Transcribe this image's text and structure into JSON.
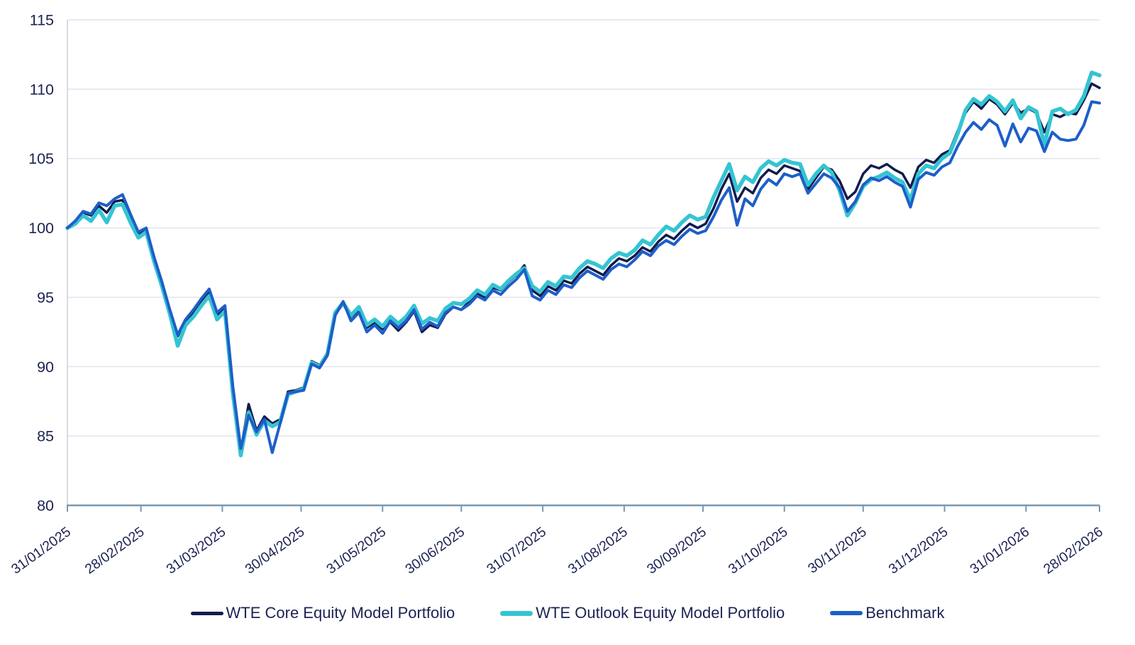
{
  "chart_data": {
    "type": "line",
    "title": "",
    "xlabel": "",
    "ylabel": "",
    "ylim": [
      80,
      115
    ],
    "y_ticks": [
      80,
      85,
      90,
      95,
      100,
      105,
      110,
      115
    ],
    "grid": "horizontal",
    "legend_position": "bottom",
    "x_tick_labels": [
      "31/01/2025",
      "28/02/2025",
      "31/03/2025",
      "30/04/2025",
      "31/05/2025",
      "30/06/2025",
      "31/07/2025",
      "31/08/2025",
      "30/09/2025",
      "31/10/2025",
      "30/11/2025",
      "31/12/2025",
      "31/01/2026",
      "28/02/2026"
    ],
    "x_tick_days": [
      0,
      28,
      59,
      89,
      120,
      150,
      181,
      212,
      242,
      273,
      303,
      334,
      365,
      393
    ],
    "total_days": 393,
    "sample_interval_days": 3,
    "series": [
      {
        "name": "WTE Core Equity Model Portfolio",
        "color": "#131b4d",
        "line_width": 3.5,
        "values": [
          100.0,
          100.4,
          101.1,
          100.9,
          101.6,
          101.1,
          101.9,
          102.0,
          100.9,
          99.6,
          99.9,
          97.8,
          96.0,
          94.0,
          92.2,
          93.3,
          93.9,
          94.7,
          95.4,
          93.7,
          94.2,
          88.4,
          83.9,
          87.3,
          85.4,
          86.4,
          85.9,
          86.2,
          88.2,
          88.3,
          88.5,
          90.4,
          90.1,
          91.0,
          93.8,
          94.5,
          93.6,
          94.1,
          92.8,
          93.2,
          92.7,
          93.2,
          92.6,
          93.2,
          94.0,
          92.5,
          93.0,
          92.8,
          93.8,
          94.3,
          94.1,
          94.7,
          95.3,
          95.0,
          95.7,
          95.5,
          96.1,
          96.6,
          97.3,
          95.5,
          95.1,
          95.8,
          95.5,
          96.2,
          96.0,
          96.7,
          97.2,
          96.9,
          96.6,
          97.3,
          97.8,
          97.6,
          98.0,
          98.6,
          98.3,
          99.0,
          99.5,
          99.2,
          99.8,
          100.3,
          100.0,
          100.3,
          101.4,
          102.8,
          103.9,
          101.9,
          102.9,
          102.5,
          103.6,
          104.2,
          103.9,
          104.5,
          104.3,
          104.1,
          102.8,
          103.6,
          104.4,
          104.2,
          103.4,
          102.1,
          102.6,
          103.9,
          104.5,
          104.3,
          104.6,
          104.2,
          103.9,
          102.9,
          104.4,
          104.9,
          104.7,
          105.3,
          105.6,
          107.0,
          108.3,
          109.1,
          108.6,
          109.3,
          108.9,
          108.2,
          109.0,
          108.3,
          108.6,
          108.3,
          106.9,
          108.2,
          108.0,
          108.3,
          108.2,
          109.2,
          110.4,
          110.1
        ]
      },
      {
        "name": "WTE Outlook Equity Model Portfolio",
        "color": "#35c4d2",
        "line_width": 5.5,
        "values": [
          100.0,
          100.3,
          100.9,
          100.5,
          101.3,
          100.4,
          101.6,
          101.7,
          100.4,
          99.3,
          99.7,
          97.6,
          95.8,
          93.8,
          91.5,
          93.0,
          93.6,
          94.4,
          95.1,
          93.4,
          94.0,
          88.1,
          83.6,
          86.7,
          85.1,
          86.1,
          85.7,
          86.0,
          88.0,
          88.2,
          88.4,
          90.3,
          90.0,
          90.9,
          93.9,
          94.6,
          93.7,
          94.3,
          93.0,
          93.4,
          92.9,
          93.6,
          93.1,
          93.6,
          94.4,
          93.1,
          93.5,
          93.3,
          94.2,
          94.6,
          94.5,
          94.9,
          95.5,
          95.2,
          95.9,
          95.6,
          96.2,
          96.7,
          97.1,
          95.8,
          95.4,
          96.1,
          95.8,
          96.5,
          96.4,
          97.1,
          97.6,
          97.4,
          97.1,
          97.8,
          98.2,
          98.0,
          98.4,
          99.1,
          98.8,
          99.5,
          100.1,
          99.8,
          100.4,
          100.9,
          100.6,
          100.8,
          102.2,
          103.4,
          104.6,
          102.7,
          103.7,
          103.3,
          104.3,
          104.8,
          104.5,
          104.9,
          104.7,
          104.6,
          103.1,
          103.9,
          104.5,
          104.0,
          102.7,
          100.9,
          101.8,
          103.0,
          103.5,
          103.7,
          104.0,
          103.6,
          103.3,
          102.0,
          103.9,
          104.5,
          104.3,
          105.0,
          105.4,
          106.8,
          108.5,
          109.3,
          108.9,
          109.5,
          109.1,
          108.4,
          109.2,
          107.9,
          108.7,
          108.4,
          106.0,
          108.4,
          108.6,
          108.2,
          108.5,
          109.5,
          111.2,
          111.0
        ]
      },
      {
        "name": "Benchmark",
        "color": "#1d5ec9",
        "line_width": 4.0,
        "values": [
          100.0,
          100.5,
          101.2,
          101.0,
          101.8,
          101.6,
          102.1,
          102.4,
          101.0,
          99.7,
          100.0,
          97.9,
          96.1,
          94.1,
          92.3,
          93.4,
          94.1,
          94.9,
          95.6,
          93.9,
          94.4,
          88.6,
          84.1,
          86.5,
          85.3,
          86.2,
          83.8,
          85.9,
          88.1,
          88.2,
          88.3,
          90.2,
          89.9,
          90.8,
          93.7,
          94.7,
          93.3,
          93.9,
          92.5,
          93.0,
          92.4,
          93.3,
          92.8,
          93.3,
          94.1,
          92.7,
          93.2,
          92.9,
          93.9,
          94.3,
          94.1,
          94.5,
          95.1,
          94.8,
          95.5,
          95.2,
          95.8,
          96.3,
          97.0,
          95.1,
          94.8,
          95.5,
          95.2,
          95.9,
          95.7,
          96.4,
          96.9,
          96.6,
          96.3,
          97.0,
          97.4,
          97.2,
          97.7,
          98.3,
          98.0,
          98.7,
          99.1,
          98.8,
          99.4,
          99.9,
          99.6,
          99.8,
          100.8,
          102.0,
          102.9,
          100.2,
          102.1,
          101.6,
          102.8,
          103.5,
          103.1,
          103.9,
          103.7,
          103.9,
          102.5,
          103.2,
          103.9,
          103.6,
          102.9,
          101.2,
          101.9,
          103.1,
          103.6,
          103.4,
          103.7,
          103.3,
          103.0,
          101.5,
          103.5,
          104.0,
          103.8,
          104.4,
          104.7,
          105.9,
          106.9,
          107.6,
          107.1,
          107.8,
          107.4,
          105.9,
          107.5,
          106.2,
          107.2,
          107.0,
          105.5,
          106.9,
          106.4,
          106.3,
          106.4,
          107.4,
          109.1,
          109.0
        ]
      }
    ]
  },
  "style": {
    "grid_color": "#dde3eb",
    "x_axis_line_color": "#7898b2",
    "y_axis_line_color": "#c3cdd9",
    "tick_color": "#7898b2",
    "text_color": "#1c2253"
  }
}
